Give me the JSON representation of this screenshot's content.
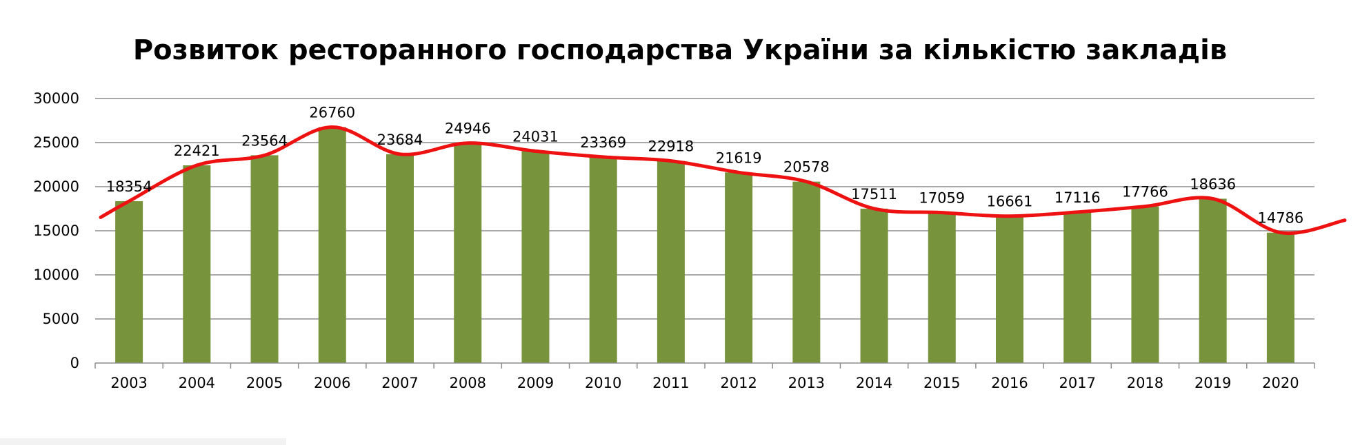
{
  "chart_data": {
    "type": "bar",
    "title": "Розвиток ресторанного господарства України за кількістю закладів",
    "xlabel": "",
    "ylabel": "",
    "categories": [
      "2003",
      "2004",
      "2005",
      "2006",
      "2007",
      "2008",
      "2009",
      "2010",
      "2011",
      "2012",
      "2013",
      "2014",
      "2015",
      "2016",
      "2017",
      "2018",
      "2019",
      "2020"
    ],
    "series": [
      {
        "values": [
          18354,
          22421,
          23564,
          26760,
          23684,
          24946,
          24031,
          23369,
          22918,
          21619,
          20578,
          17511,
          17059,
          16661,
          17116,
          17766,
          18636,
          14786
        ]
      }
    ],
    "trendline": {
      "type": "smoothed-line",
      "color": "#ee1111"
    },
    "ylim": [
      0,
      30000
    ],
    "yticks": [
      0,
      5000,
      10000,
      15000,
      20000,
      25000,
      30000
    ],
    "grid": true,
    "legend": "none",
    "bar_color": "#77933c"
  }
}
